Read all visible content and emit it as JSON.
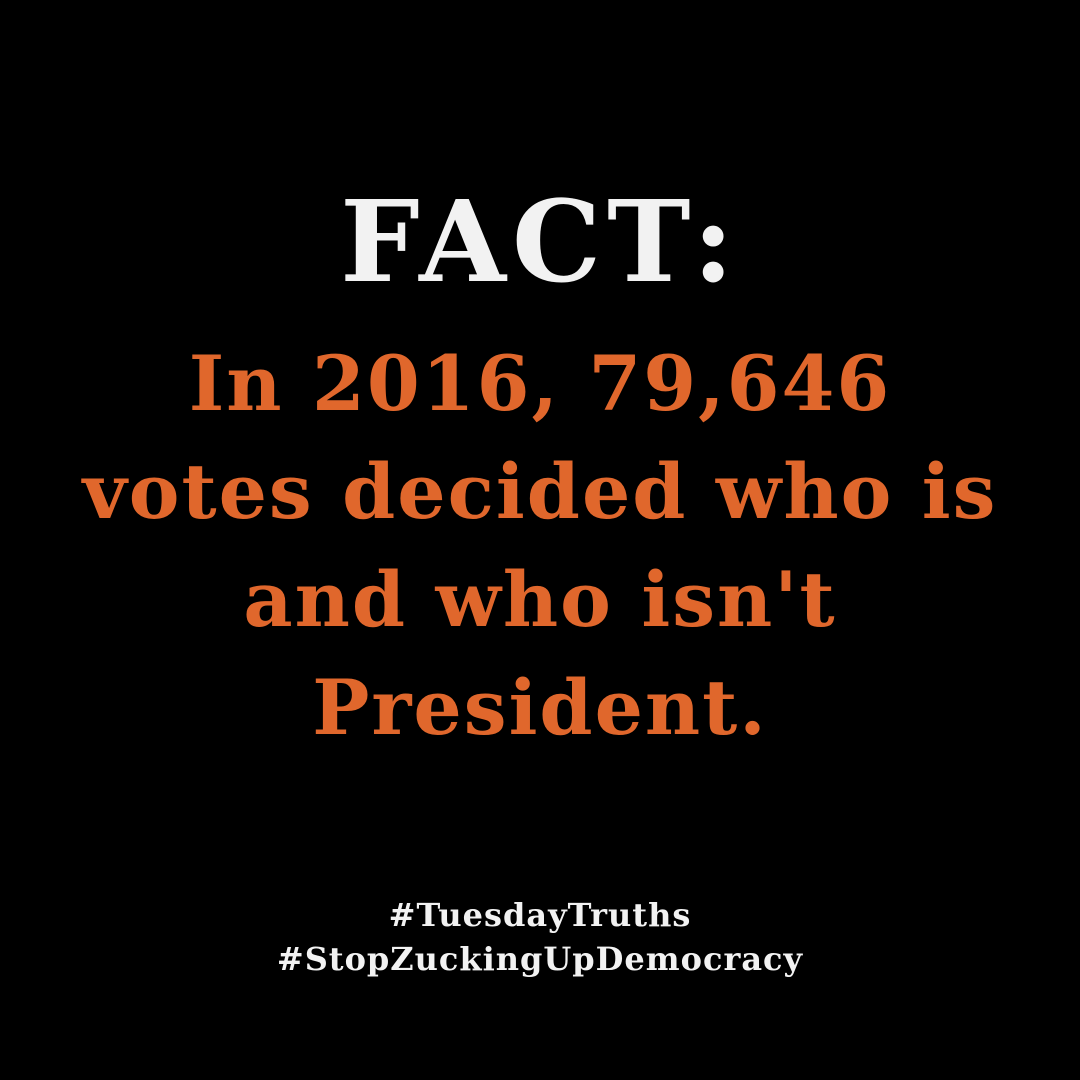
{
  "colors": {
    "background": "#000000",
    "headline": "#f2f2f2",
    "accent": "#e0672c",
    "hashtags": "#f2f2f2"
  },
  "headline": "FACT:",
  "statement": {
    "lines": [
      "In 2016, 79,646",
      "votes decided who is",
      "and who isn't",
      "President."
    ]
  },
  "hashtags": [
    "#TuesdayTruths",
    "#StopZuckingUpDemocracy"
  ]
}
